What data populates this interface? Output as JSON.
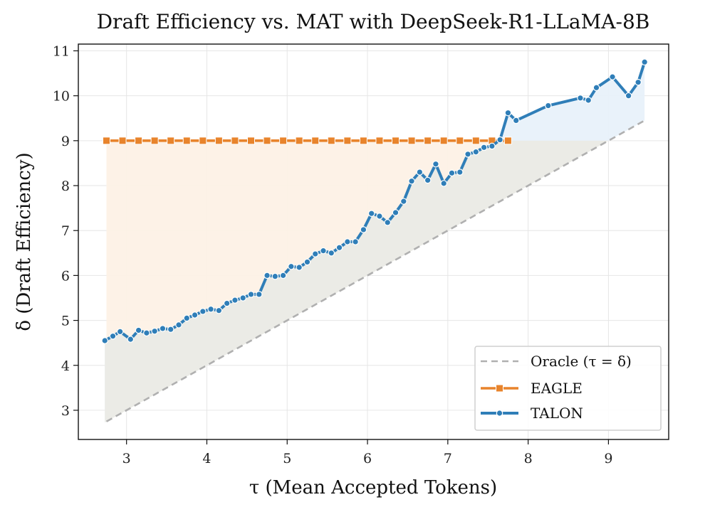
{
  "chart_data": {
    "type": "line",
    "title": "Draft Efficiency vs. MAT with DeepSeek-R1-LLaMA-8B",
    "xlabel": "τ (Mean Accepted Tokens)",
    "ylabel": "δ (Draft Efficiency)",
    "xlim": [
      2.4,
      9.75
    ],
    "ylim": [
      2.35,
      11.15
    ],
    "xticks": [
      3,
      4,
      5,
      6,
      7,
      8,
      9
    ],
    "yticks": [
      3,
      4,
      5,
      6,
      7,
      8,
      9,
      10,
      11
    ],
    "grid": true,
    "legend_position": "lower-right",
    "colors": {
      "oracle": "#b0b0b0",
      "eagle": "#e8842c",
      "talon": "#2f7eb8",
      "eagle_fill": "#fdf1e6",
      "talon_fill": "#e8f1fa",
      "overlap_fill": "#ebebe6"
    },
    "series": [
      {
        "name": "Oracle (τ = δ)",
        "key": "oracle",
        "style": "dashed",
        "x": [
          2.75,
          9.45
        ],
        "y": [
          2.75,
          9.45
        ]
      },
      {
        "name": "EAGLE",
        "key": "eagle",
        "style": "solid",
        "marker": "square",
        "x": [
          2.75,
          2.95,
          3.15,
          3.35,
          3.55,
          3.75,
          3.95,
          4.15,
          4.35,
          4.55,
          4.75,
          4.95,
          5.15,
          5.35,
          5.55,
          5.75,
          5.95,
          6.15,
          6.35,
          6.55,
          6.75,
          6.95,
          7.15,
          7.35,
          7.55,
          7.75
        ],
        "y": [
          9,
          9,
          9,
          9,
          9,
          9,
          9,
          9,
          9,
          9,
          9,
          9,
          9,
          9,
          9,
          9,
          9,
          9,
          9,
          9,
          9,
          9,
          9,
          9,
          9,
          9
        ]
      },
      {
        "name": "TALON",
        "key": "talon",
        "style": "solid",
        "marker": "circle",
        "x": [
          2.73,
          2.83,
          2.92,
          3.05,
          3.15,
          3.25,
          3.35,
          3.45,
          3.55,
          3.65,
          3.75,
          3.85,
          3.95,
          4.05,
          4.15,
          4.25,
          4.35,
          4.45,
          4.55,
          4.65,
          4.75,
          4.85,
          4.95,
          5.05,
          5.15,
          5.25,
          5.35,
          5.45,
          5.55,
          5.65,
          5.75,
          5.85,
          5.95,
          6.05,
          6.15,
          6.25,
          6.35,
          6.45,
          6.55,
          6.65,
          6.75,
          6.85,
          6.95,
          7.05,
          7.15,
          7.25,
          7.35,
          7.45,
          7.55,
          7.65,
          7.75,
          7.85,
          8.25,
          8.65,
          8.75,
          8.85,
          9.05,
          9.25,
          9.37,
          9.45
        ],
        "y": [
          4.55,
          4.65,
          4.75,
          4.58,
          4.78,
          4.72,
          4.76,
          4.82,
          4.8,
          4.9,
          5.05,
          5.12,
          5.2,
          5.25,
          5.22,
          5.38,
          5.45,
          5.5,
          5.58,
          5.58,
          6.0,
          5.98,
          6.0,
          6.2,
          6.18,
          6.3,
          6.48,
          6.55,
          6.5,
          6.62,
          6.75,
          6.75,
          7.02,
          7.38,
          7.32,
          7.18,
          7.4,
          7.65,
          8.1,
          8.3,
          8.12,
          8.48,
          8.05,
          8.28,
          8.3,
          8.7,
          8.75,
          8.85,
          8.88,
          9.02,
          9.62,
          9.45,
          9.78,
          9.95,
          9.9,
          10.18,
          10.42,
          10.0,
          10.3,
          10.75
        ]
      }
    ]
  }
}
